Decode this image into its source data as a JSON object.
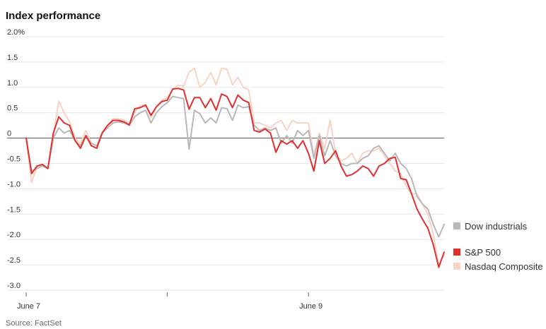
{
  "chart_data": {
    "type": "line",
    "title": "Index performance",
    "source": "Source: FactSet",
    "y_unit_suffix": "%",
    "ylim": [
      -3.0,
      2.0
    ],
    "y_ticks": [
      {
        "value": 2.0,
        "label": "2.0%"
      },
      {
        "value": 1.5,
        "label": "1.5"
      },
      {
        "value": 1.0,
        "label": "1.0"
      },
      {
        "value": 0.5,
        "label": "0.5"
      },
      {
        "value": 0,
        "label": "0"
      },
      {
        "value": -0.5,
        "label": "-0.5"
      },
      {
        "value": -1.0,
        "label": "-1.0"
      },
      {
        "value": -1.5,
        "label": "-1.5"
      },
      {
        "value": -2.0,
        "label": "-2.0"
      },
      {
        "value": -2.5,
        "label": "-2.5"
      },
      {
        "value": -3.0,
        "label": "-3.0"
      }
    ],
    "x_ticks": [
      {
        "index": 0,
        "label": "June 7"
      },
      {
        "index": 26,
        "label": ""
      },
      {
        "index": 52,
        "label": "June 9"
      }
    ],
    "grid": true,
    "legend_position": "right",
    "series": [
      {
        "name": "Nasdaq Composite",
        "color": "#f9d3c4",
        "values": [
          0.0,
          -0.88,
          -0.55,
          -0.55,
          -0.6,
          0.05,
          0.73,
          0.5,
          0.32,
          0.0,
          -0.1,
          0.15,
          -0.1,
          -0.16,
          0.12,
          0.25,
          0.38,
          0.38,
          0.36,
          0.28,
          0.52,
          0.64,
          0.66,
          0.4,
          0.62,
          0.75,
          0.8,
          0.95,
          1.05,
          1.02,
          1.3,
          1.38,
          1.0,
          1.1,
          1.3,
          1.05,
          1.38,
          1.36,
          1.05,
          1.2,
          1.0,
          0.95,
          0.3,
          0.3,
          0.25,
          0.2,
          0.3,
          0.35,
          0.15,
          0.35,
          0.3,
          0.3,
          0.3,
          -0.35,
          0.1,
          -0.2,
          0.35,
          -0.3,
          -0.45,
          -0.4,
          -0.3,
          -0.5,
          -0.3,
          -0.25,
          -0.25,
          -0.2,
          -0.35,
          -0.5,
          -0.65,
          -0.7,
          -0.95,
          -1.1,
          -1.1,
          -1.3,
          -1.5,
          -1.9,
          -2.5,
          -2.3
        ]
      },
      {
        "name": "Dow industrials",
        "color": "#b8b8b8",
        "values": [
          0.0,
          -0.65,
          -0.6,
          -0.55,
          -0.6,
          0.0,
          0.2,
          0.1,
          0.15,
          -0.05,
          -0.15,
          0.05,
          -0.1,
          -0.15,
          0.1,
          0.2,
          0.3,
          0.32,
          0.3,
          0.25,
          0.42,
          0.5,
          0.55,
          0.3,
          0.5,
          0.62,
          0.7,
          0.82,
          0.8,
          0.78,
          -0.22,
          0.55,
          0.48,
          0.3,
          0.4,
          0.3,
          0.6,
          0.58,
          0.35,
          0.65,
          0.6,
          0.62,
          0.25,
          0.15,
          0.2,
          0.15,
          0.2,
          -0.1,
          0.05,
          -0.1,
          0.15,
          0.05,
          0.15,
          -0.4,
          0.05,
          -0.35,
          -0.05,
          -0.35,
          -0.5,
          -0.55,
          -0.5,
          -0.5,
          -0.4,
          -0.35,
          -0.2,
          -0.15,
          -0.3,
          -0.45,
          -0.3,
          -0.5,
          -0.6,
          -0.8,
          -1.15,
          -1.3,
          -1.4,
          -1.7,
          -1.95,
          -1.7
        ]
      },
      {
        "name": "S&P 500",
        "color": "#e03030",
        "values": [
          0.0,
          -0.7,
          -0.55,
          -0.52,
          -0.6,
          0.1,
          0.42,
          0.3,
          0.25,
          -0.05,
          -0.2,
          0.05,
          -0.15,
          -0.2,
          0.1,
          0.25,
          0.35,
          0.35,
          0.32,
          0.26,
          0.58,
          0.6,
          0.65,
          0.45,
          0.62,
          0.72,
          0.75,
          0.97,
          0.98,
          0.95,
          0.57,
          0.8,
          0.8,
          0.6,
          0.78,
          0.55,
          0.87,
          0.82,
          0.6,
          0.85,
          0.75,
          0.7,
          0.15,
          0.12,
          0.18,
          0.1,
          -0.28,
          -0.05,
          -0.12,
          -0.05,
          -0.2,
          -0.05,
          -0.3,
          -0.65,
          -0.05,
          -0.5,
          -0.4,
          -0.25,
          -0.55,
          -0.75,
          -0.72,
          -0.65,
          -0.55,
          -0.6,
          -0.75,
          -0.55,
          -0.5,
          -0.4,
          -0.38,
          -0.8,
          -0.82,
          -1.1,
          -1.4,
          -1.6,
          -1.78,
          -2.1,
          -2.55,
          -2.25
        ]
      }
    ],
    "legend_order": [
      "Dow industrials",
      "S&P 500",
      "Nasdaq Composite"
    ]
  }
}
